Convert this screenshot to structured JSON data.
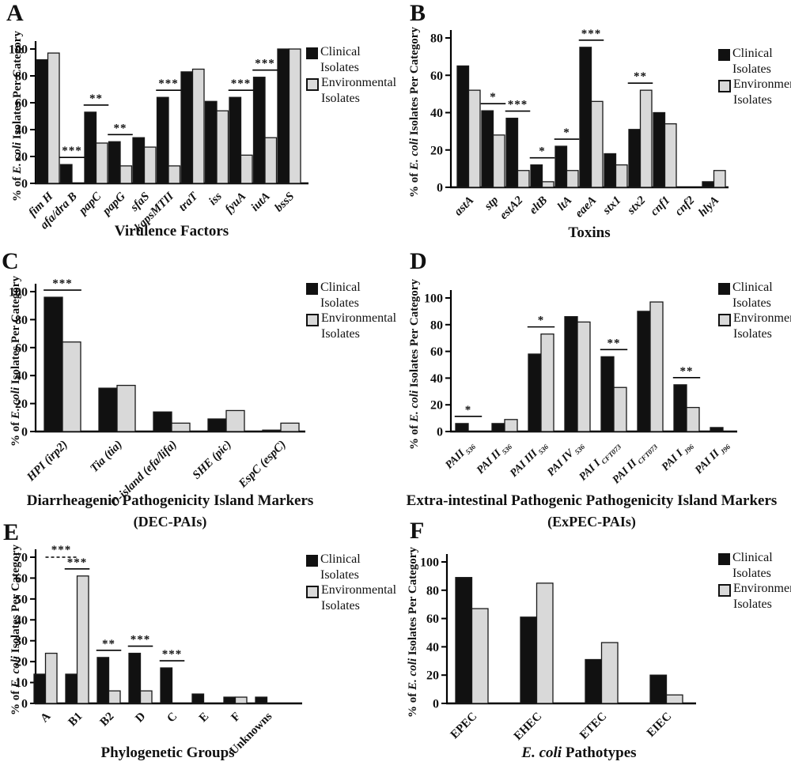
{
  "figure": {
    "description": "Six-panel bar chart figure comparing clinical vs environmental E. coli isolates",
    "background": "#ffffff"
  },
  "ylabel": {
    "pre": "% of ",
    "italic": "E. coli",
    "post": " Isolates Per Category"
  },
  "legend": {
    "clinical_line1": "Clinical",
    "clinical_line2": "Isolates",
    "env_line1": "Environmental",
    "env_line2": "Isolates"
  },
  "colors": {
    "clinical": "#111111",
    "environmental": "#d9d9d9",
    "stroke": "#1a1a1a",
    "axis": "#000000"
  },
  "chart_data": [
    {
      "panel": "A",
      "type": "bar",
      "title_italic": "",
      "title": "Virulence Factors",
      "subtitle": "",
      "xlabel": "Virulence Factors",
      "ylabel": "% of E. coli Isolates Per Category",
      "ymax": 100,
      "yticks": [
        0,
        20,
        40,
        60,
        80,
        100
      ],
      "italic_categories": true,
      "categories": [
        "fim H",
        "afa/dra B",
        "papC",
        "papG",
        "sfaS",
        "kapsMTII",
        "traT",
        "iss",
        "fyuA",
        "iutA",
        "bssS"
      ],
      "series": [
        {
          "name": "Clinical Isolates",
          "values": [
            92,
            14,
            53,
            31,
            34,
            64,
            83,
            61,
            64,
            79,
            100
          ]
        },
        {
          "name": "Environmental Isolates",
          "values": [
            97,
            0,
            30,
            13,
            27,
            13,
            85,
            54,
            21,
            34,
            100
          ]
        }
      ],
      "sig": [
        {
          "i": 1,
          "m": "***"
        },
        {
          "i": 2,
          "m": "**"
        },
        {
          "i": 3,
          "m": "**"
        },
        {
          "i": 5,
          "m": "***"
        },
        {
          "i": 8,
          "m": "***"
        },
        {
          "i": 9,
          "m": "***"
        }
      ]
    },
    {
      "panel": "B",
      "type": "bar",
      "title_italic": "",
      "title": "Toxins",
      "subtitle": "",
      "xlabel": "Toxins",
      "ylabel": "% of E. coli Isolates Per Category",
      "ymax": 80,
      "yticks": [
        0,
        20,
        40,
        60,
        80
      ],
      "italic_categories": true,
      "categories": [
        "astA",
        "stp",
        "estA2",
        "eltB",
        "ltA",
        "eaeA",
        "stx1",
        "stx2",
        "cnf1",
        "cnf2",
        "hlyA"
      ],
      "series": [
        {
          "name": "Clinical Isolates",
          "values": [
            65,
            41,
            37,
            12,
            22,
            75,
            18,
            31,
            40,
            0,
            3
          ]
        },
        {
          "name": "Environmental Isolates",
          "values": [
            52,
            28,
            9,
            3,
            9,
            46,
            12,
            52,
            34,
            0,
            9
          ]
        }
      ],
      "sig": [
        {
          "i": 1,
          "m": "*"
        },
        {
          "i": 2,
          "m": "***"
        },
        {
          "i": 3,
          "m": "*"
        },
        {
          "i": 4,
          "m": "*"
        },
        {
          "i": 5,
          "m": "***"
        },
        {
          "i": 7,
          "m": "**"
        }
      ]
    },
    {
      "panel": "C",
      "type": "bar",
      "title_italic": "",
      "title": "Diarrheagenic Pathogenicity Island Markers",
      "subtitle": "(DEC-PAIs)",
      "xlabel": "Diarrheagenic Pathogenicity Island Markers (DEC-PAIs)",
      "ylabel": "% of E. coli Isolates Per Category",
      "ymax": 100,
      "yticks": [
        0,
        20,
        40,
        60,
        80,
        100
      ],
      "italic_categories": true,
      "categories": [
        "HPI (irp2)",
        "Tia (tia)",
        "O-island (efa/lifa)",
        "SHE (pic)",
        "EspC (espC)"
      ],
      "series": [
        {
          "name": "Clinical Isolates",
          "values": [
            96,
            31,
            14,
            9,
            1
          ]
        },
        {
          "name": "Environmental Isolates",
          "values": [
            64,
            33,
            6,
            15,
            6
          ]
        }
      ],
      "sig": [
        {
          "i": 0,
          "m": "***"
        }
      ]
    },
    {
      "panel": "D",
      "type": "bar",
      "title_italic": "",
      "title": "Extra-intestinal Pathogenic Pathogenicity Island Markers",
      "subtitle": "(ExPEC-PAIs)",
      "xlabel": "Extra-intestinal Pathogenic Pathogenicity Island Markers (ExPEC-PAIs)",
      "ylabel": "% of E. coli Isolates Per Category",
      "ymax": 100,
      "yticks": [
        0,
        20,
        40,
        60,
        80,
        100
      ],
      "italic_categories": true,
      "categories": [
        {
          "t": "PAII",
          "s": "536"
        },
        {
          "t": "PAI II",
          "s": "536"
        },
        {
          "t": "PAI III",
          "s": "536"
        },
        {
          "t": "PAI IV",
          "s": "536"
        },
        {
          "t": "PAI I",
          "s": "CFT073"
        },
        {
          "t": "PAI II",
          "s": "CFT073"
        },
        {
          "t": "PAI I",
          "s": "J96"
        },
        {
          "t": "PAI II",
          "s": "J96"
        }
      ],
      "series": [
        {
          "name": "Clinical Isolates",
          "values": [
            6,
            6,
            58,
            86,
            56,
            90,
            35,
            3
          ]
        },
        {
          "name": "Environmental Isolates",
          "values": [
            0,
            9,
            73,
            82,
            33,
            97,
            18,
            0
          ]
        }
      ],
      "sig": [
        {
          "i": 0,
          "m": "*"
        },
        {
          "i": 2,
          "m": "*"
        },
        {
          "i": 4,
          "m": "**"
        },
        {
          "i": 6,
          "m": "**"
        }
      ]
    },
    {
      "panel": "E",
      "type": "bar",
      "title_italic": "",
      "title": "Phylogenetic Groups",
      "subtitle": "",
      "xlabel": "Phylogenetic Groups",
      "ylabel": "% of E. coli Isolates Per Category",
      "ymax": 70,
      "yticks": [
        0,
        10,
        20,
        30,
        40,
        50,
        60,
        70
      ],
      "italic_categories": false,
      "categories": [
        "A",
        "B1",
        "B2",
        "D",
        "C",
        "E",
        "F",
        "Unknowns"
      ],
      "series": [
        {
          "name": "Clinical Isolates",
          "values": [
            14,
            14,
            22,
            24,
            17,
            4.5,
            3,
            3
          ]
        },
        {
          "name": "Environmental Isolates",
          "values": [
            24,
            61,
            6,
            6,
            0,
            0,
            3,
            0
          ]
        }
      ],
      "sig": [
        {
          "span": [
            0,
            1
          ],
          "y": 70,
          "dashed": true,
          "m": "***"
        },
        {
          "i": 1,
          "m": "***"
        },
        {
          "i": 2,
          "m": "**"
        },
        {
          "i": 3,
          "m": "***"
        },
        {
          "i": 4,
          "m": "***"
        }
      ]
    },
    {
      "panel": "F",
      "type": "bar",
      "title_italic": "E. coli",
      "title": " Pathotypes",
      "subtitle": "",
      "xlabel": "E. coli Pathotypes",
      "ylabel": "% of E. coli Isolates Per Category",
      "ymax": 100,
      "yticks": [
        0,
        20,
        40,
        60,
        80,
        100
      ],
      "italic_categories": false,
      "categories": [
        "EPEC",
        "EHEC",
        "ETEC",
        "EIEC"
      ],
      "series": [
        {
          "name": "Clinical Isolates",
          "values": [
            89,
            61,
            31,
            20
          ]
        },
        {
          "name": "Environmental Isolates",
          "values": [
            67,
            85,
            43,
            6
          ]
        }
      ],
      "sig": []
    }
  ]
}
